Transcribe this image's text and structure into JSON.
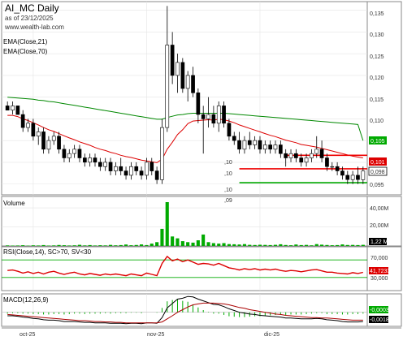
{
  "header": {
    "title": "AI_MC Daily",
    "subtitle": "as of 23/12/2025",
    "url": "www.wealth-lab.com"
  },
  "colors": {
    "up": "#ffffff",
    "down": "#000000",
    "ema21": "#dd0000",
    "ema70": "#008800",
    "volume": "#00aa00",
    "support": "#00aa00",
    "resistance": "#ee0000",
    "rsi": "#dd0000",
    "macd": "#000000",
    "signal": "#aa0000",
    "hist": "#00aa00",
    "band": "#00aa00"
  },
  "price_panel": {
    "legend": [
      "EMA(Close,21)",
      "EMA(Close,70)"
    ],
    "axis_labels": [
      "0,135",
      "0,130",
      "0,125",
      "0,120",
      "0,115",
      "0,110",
      "0,105",
      "0,100",
      "0,095"
    ],
    "last_labels": {
      "ema70": "0,105",
      "ema21": "0,101",
      "close": "0,098"
    },
    "level_labels": [
      ",10",
      ",10",
      ",10",
      ",09"
    ]
  },
  "volume_panel": {
    "title": "Volume",
    "axis_labels": [
      "40,00M",
      "20,00M"
    ],
    "last_label": "1,22 M"
  },
  "rsi_panel": {
    "title": "RSI(Close,14), SC>70, SV<30",
    "axis_labels": [
      "70,000",
      "30,000"
    ],
    "last_label": "41,7233"
  },
  "macd_panel": {
    "title": "MACD(12,26,9)",
    "last_labels": [
      "-0,0003",
      "-0,0018"
    ]
  },
  "x_axis": {
    "labels": [
      "oct-25",
      "nov-25",
      "dic-25"
    ]
  },
  "chart_data": {
    "type": "candlestick",
    "title": "AI_MC Daily",
    "subtitle": "as of 23/12/2025",
    "y_range": [
      0.0925,
      0.137
    ],
    "y_ticks": [
      0.095,
      0.1,
      0.105,
      0.11,
      0.115,
      0.12,
      0.125,
      0.13,
      0.135
    ],
    "ohlc": [
      [
        0.113,
        0.114,
        0.112,
        0.112
      ],
      [
        0.112,
        0.114,
        0.111,
        0.113
      ],
      [
        0.113,
        0.113,
        0.111,
        0.111
      ],
      [
        0.111,
        0.112,
        0.107,
        0.108
      ],
      [
        0.108,
        0.11,
        0.107,
        0.109
      ],
      [
        0.109,
        0.11,
        0.105,
        0.106
      ],
      [
        0.106,
        0.108,
        0.104,
        0.107
      ],
      [
        0.107,
        0.108,
        0.102,
        0.103
      ],
      [
        0.103,
        0.106,
        0.102,
        0.105
      ],
      [
        0.105,
        0.107,
        0.104,
        0.106
      ],
      [
        0.106,
        0.107,
        0.102,
        0.103
      ],
      [
        0.103,
        0.104,
        0.1,
        0.101
      ],
      [
        0.101,
        0.103,
        0.1,
        0.102
      ],
      [
        0.102,
        0.104,
        0.101,
        0.103
      ],
      [
        0.103,
        0.104,
        0.1,
        0.101
      ],
      [
        0.101,
        0.102,
        0.099,
        0.1
      ],
      [
        0.1,
        0.102,
        0.099,
        0.101
      ],
      [
        0.101,
        0.102,
        0.099,
        0.1
      ],
      [
        0.1,
        0.101,
        0.098,
        0.099
      ],
      [
        0.099,
        0.101,
        0.098,
        0.1
      ],
      [
        0.1,
        0.101,
        0.097,
        0.098
      ],
      [
        0.098,
        0.1,
        0.097,
        0.099
      ],
      [
        0.099,
        0.101,
        0.097,
        0.098
      ],
      [
        0.098,
        0.099,
        0.096,
        0.097
      ],
      [
        0.097,
        0.1,
        0.096,
        0.099
      ],
      [
        0.099,
        0.1,
        0.097,
        0.098
      ],
      [
        0.098,
        0.099,
        0.096,
        0.097
      ],
      [
        0.097,
        0.101,
        0.096,
        0.1
      ],
      [
        0.1,
        0.101,
        0.097,
        0.098
      ],
      [
        0.098,
        0.099,
        0.095,
        0.096
      ],
      [
        0.096,
        0.11,
        0.095,
        0.108
      ],
      [
        0.108,
        0.136,
        0.107,
        0.127
      ],
      [
        0.127,
        0.13,
        0.118,
        0.12
      ],
      [
        0.12,
        0.125,
        0.116,
        0.123
      ],
      [
        0.123,
        0.124,
        0.116,
        0.117
      ],
      [
        0.117,
        0.121,
        0.114,
        0.12
      ],
      [
        0.12,
        0.122,
        0.115,
        0.116
      ],
      [
        0.116,
        0.117,
        0.109,
        0.111
      ],
      [
        0.111,
        0.113,
        0.102,
        0.11
      ],
      [
        0.11,
        0.115,
        0.108,
        0.111
      ],
      [
        0.111,
        0.113,
        0.108,
        0.109
      ],
      [
        0.109,
        0.114,
        0.107,
        0.113
      ],
      [
        0.113,
        0.114,
        0.108,
        0.109
      ],
      [
        0.109,
        0.11,
        0.105,
        0.106
      ],
      [
        0.106,
        0.107,
        0.104,
        0.105
      ],
      [
        0.105,
        0.107,
        0.102,
        0.103
      ],
      [
        0.103,
        0.106,
        0.102,
        0.105
      ],
      [
        0.105,
        0.107,
        0.103,
        0.104
      ],
      [
        0.104,
        0.106,
        0.103,
        0.105
      ],
      [
        0.105,
        0.106,
        0.102,
        0.103
      ],
      [
        0.103,
        0.105,
        0.102,
        0.104
      ],
      [
        0.104,
        0.105,
        0.102,
        0.103
      ],
      [
        0.103,
        0.105,
        0.102,
        0.104
      ],
      [
        0.104,
        0.105,
        0.101,
        0.102
      ],
      [
        0.102,
        0.103,
        0.099,
        0.101
      ],
      [
        0.101,
        0.103,
        0.1,
        0.102
      ],
      [
        0.102,
        0.103,
        0.1,
        0.101
      ],
      [
        0.101,
        0.102,
        0.099,
        0.1
      ],
      [
        0.1,
        0.102,
        0.099,
        0.101
      ],
      [
        0.101,
        0.103,
        0.1,
        0.102
      ],
      [
        0.102,
        0.106,
        0.101,
        0.103
      ],
      [
        0.103,
        0.105,
        0.1,
        0.101
      ],
      [
        0.101,
        0.102,
        0.098,
        0.099
      ],
      [
        0.099,
        0.1,
        0.098,
        0.099
      ],
      [
        0.099,
        0.1,
        0.097,
        0.098
      ],
      [
        0.098,
        0.099,
        0.096,
        0.097
      ],
      [
        0.097,
        0.098,
        0.095,
        0.096
      ],
      [
        0.096,
        0.098,
        0.095,
        0.097
      ],
      [
        0.097,
        0.099,
        0.095,
        0.096
      ],
      [
        0.096,
        0.099,
        0.095,
        0.098
      ]
    ],
    "volume_millions": [
      0.6,
      0.4,
      0.5,
      0.8,
      0.3,
      0.7,
      0.5,
      0.9,
      0.4,
      0.6,
      1.0,
      0.8,
      0.5,
      0.7,
      1.2,
      0.6,
      0.9,
      0.5,
      0.8,
      0.6,
      1.1,
      0.7,
      0.9,
      1.5,
      0.8,
      1.0,
      1.6,
      0.9,
      2.5,
      4.0,
      18.0,
      46.0,
      10.0,
      8.0,
      5.0,
      4.0,
      3.5,
      6.0,
      12.0,
      4.0,
      3.0,
      2.5,
      3.0,
      2.0,
      1.8,
      1.5,
      2.0,
      1.2,
      1.0,
      1.3,
      1.1,
      0.9,
      1.2,
      1.8,
      1.0,
      0.8,
      1.5,
      0.9,
      1.1,
      0.7,
      2.0,
      1.4,
      1.0,
      0.8,
      0.9,
      1.6,
      1.0,
      1.1,
      0.9,
      1.22
    ],
    "ema21": [
      0.1108,
      0.1108,
      0.1105,
      0.11,
      0.1096,
      0.1091,
      0.1086,
      0.108,
      0.1075,
      0.1071,
      0.1066,
      0.1061,
      0.1056,
      0.1052,
      0.1047,
      0.1043,
      0.1039,
      0.1034,
      0.103,
      0.1027,
      0.1023,
      0.102,
      0.1016,
      0.1013,
      0.1011,
      0.1008,
      0.1005,
      0.1003,
      0.1001,
      0.0999,
      0.1007,
      0.103,
      0.1046,
      0.1064,
      0.1075,
      0.1089,
      0.1095,
      0.1096,
      0.1097,
      0.1098,
      0.1097,
      0.1099,
      0.1098,
      0.1095,
      0.1091,
      0.1086,
      0.1082,
      0.1078,
      0.1074,
      0.107,
      0.1066,
      0.1062,
      0.1059,
      0.1055,
      0.1051,
      0.1048,
      0.1045,
      0.1041,
      0.1039,
      0.1037,
      0.1035,
      0.1032,
      0.1029,
      0.1026,
      0.1023,
      0.102,
      0.1017,
      0.1014,
      0.1012,
      0.101
    ],
    "ema70": [
      0.115,
      0.1149,
      0.1148,
      0.1147,
      0.1146,
      0.1145,
      0.1143,
      0.1142,
      0.114,
      0.1139,
      0.1137,
      0.1135,
      0.1133,
      0.1131,
      0.1129,
      0.1127,
      0.1125,
      0.1123,
      0.1121,
      0.1119,
      0.1117,
      0.1115,
      0.1113,
      0.1111,
      0.1109,
      0.1107,
      0.1105,
      0.1103,
      0.1101,
      0.1099,
      0.1099,
      0.1103,
      0.1106,
      0.1109,
      0.111,
      0.1112,
      0.1113,
      0.1113,
      0.1113,
      0.1113,
      0.1113,
      0.1113,
      0.1113,
      0.1112,
      0.1111,
      0.111,
      0.1109,
      0.1108,
      0.1107,
      0.1106,
      0.1105,
      0.1104,
      0.1103,
      0.1102,
      0.1101,
      0.11,
      0.1099,
      0.1098,
      0.1097,
      0.1096,
      0.1095,
      0.1094,
      0.1093,
      0.1092,
      0.1091,
      0.109,
      0.1089,
      0.1088,
      0.1087,
      0.105
    ],
    "rsi": [
      46,
      47,
      44,
      40,
      43,
      39,
      42,
      38,
      42,
      44,
      40,
      37,
      40,
      42,
      38,
      36,
      39,
      37,
      35,
      38,
      36,
      38,
      36,
      34,
      38,
      36,
      34,
      40,
      37,
      34,
      62,
      78,
      68,
      72,
      66,
      70,
      65,
      60,
      62,
      61,
      58,
      62,
      57,
      52,
      50,
      47,
      50,
      48,
      50,
      47,
      49,
      47,
      49,
      46,
      44,
      46,
      45,
      43,
      45,
      47,
      48,
      45,
      42,
      42,
      40,
      39,
      38,
      41,
      39,
      41.7
    ],
    "macd": [
      -0.0008,
      -0.0008,
      -0.0009,
      -0.0011,
      -0.0012,
      -0.0014,
      -0.0015,
      -0.0017,
      -0.0018,
      -0.0018,
      -0.0019,
      -0.0021,
      -0.0021,
      -0.0021,
      -0.0022,
      -0.0023,
      -0.0023,
      -0.0024,
      -0.0024,
      -0.0024,
      -0.0025,
      -0.0025,
      -0.0025,
      -0.0026,
      -0.0025,
      -0.0025,
      -0.0026,
      -0.0024,
      -0.0024,
      -0.0025,
      -0.0012,
      0.001,
      0.002,
      0.003,
      0.0032,
      0.0036,
      0.0035,
      0.003,
      0.0026,
      0.0022,
      0.0018,
      0.0017,
      0.0013,
      0.0008,
      0.0004,
      0.0,
      -0.0002,
      -0.0004,
      -0.0005,
      -0.0007,
      -0.0008,
      -0.0009,
      -0.001,
      -0.0011,
      -0.0013,
      -0.0013,
      -0.0014,
      -0.0015,
      -0.0015,
      -0.0015,
      -0.0014,
      -0.0015,
      -0.0017,
      -0.0018,
      -0.0019,
      -0.0021,
      -0.0022,
      -0.0022,
      -0.0022,
      -0.0021
    ],
    "signal": [
      -0.0005,
      -0.0006,
      -0.0007,
      -0.0008,
      -0.0009,
      -0.001,
      -0.0011,
      -0.0012,
      -0.0013,
      -0.0014,
      -0.0015,
      -0.0016,
      -0.0017,
      -0.0018,
      -0.0019,
      -0.0019,
      -0.002,
      -0.0021,
      -0.0021,
      -0.0022,
      -0.0022,
      -0.0023,
      -0.0023,
      -0.0024,
      -0.0024,
      -0.0024,
      -0.0024,
      -0.0024,
      -0.0024,
      -0.0024,
      -0.0022,
      -0.0015,
      -0.0008,
      0.0,
      0.0006,
      0.0012,
      0.0017,
      0.0019,
      0.0021,
      0.0021,
      0.0021,
      0.002,
      0.0019,
      0.0017,
      0.0014,
      0.0011,
      0.0009,
      0.0006,
      0.0004,
      0.0002,
      0.0,
      -0.0002,
      -0.0004,
      -0.0005,
      -0.0007,
      -0.0008,
      -0.0009,
      -0.001,
      -0.0011,
      -0.0012,
      -0.0012,
      -0.0013,
      -0.0013,
      -0.0014,
      -0.0015,
      -0.0016,
      -0.0017,
      -0.0018,
      -0.0018,
      -0.0018
    ],
    "support_level": 0.0953,
    "resistance_levels": [
      {
        "value": 0.1016,
        "from_bar": 54,
        "to_bar": 69
      },
      {
        "value": 0.0985,
        "from_bar": 45,
        "to_bar": 69
      }
    ],
    "support_from_bar": 45,
    "volume_ticks": [
      20,
      40
    ],
    "rsi_bands": [
      30,
      70
    ],
    "x_month_starts": [
      {
        "label": "oct-25",
        "bar": 5
      },
      {
        "label": "nov-25",
        "bar": 27
      },
      {
        "label": "dic-25",
        "bar": 49
      }
    ]
  }
}
